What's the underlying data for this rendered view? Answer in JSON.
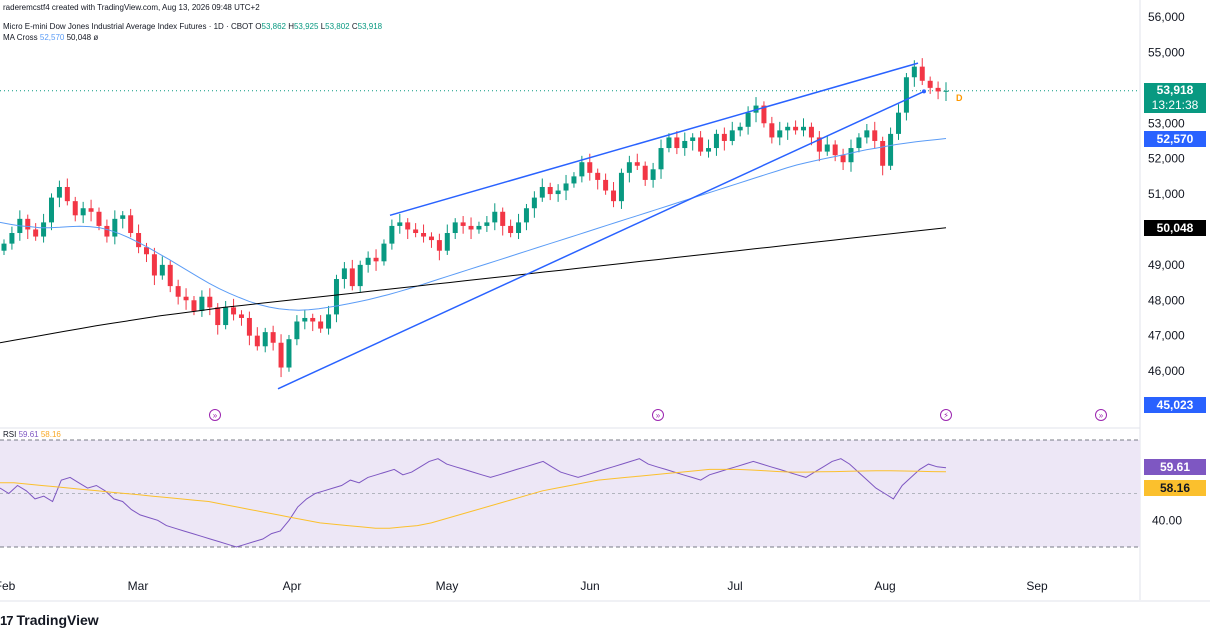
{
  "header": {
    "created_by": "raderemcstf4 created with TradingView.com, Aug 13, 2026 09:48 UTC+2",
    "symbol_line": "Micro E-mini Dow Jones Industrial Average Index Futures · 1D · CBOT",
    "ohlc": {
      "o_label": "O",
      "o": "53,862",
      "h_label": "H",
      "h": "53,925",
      "l_label": "L",
      "l": "53,802",
      "c_label": "C",
      "c": "53,918"
    },
    "ma_legend": {
      "name": "MA Cross",
      "fast": "52,570",
      "slow": "50,048",
      "symbol": "ø"
    },
    "rsi_legend": {
      "name": "RSI",
      "rsi": "59.61",
      "ma": "58.16"
    }
  },
  "footer": {
    "logo_text": "TradingView"
  },
  "colors": {
    "up": "#089981",
    "down": "#f23645",
    "ma_fast": "#5b9cf6",
    "ma_slow": "#000000",
    "trendline": "#2962ff",
    "rsi": "#7e57c2",
    "rsi_ma": "#fbc02d",
    "rsi_band": "#ede7f6"
  },
  "price_axis": {
    "ticks": [
      "56,000",
      "55,000",
      "53,000",
      "52,000",
      "51,000",
      "50,000",
      "49,000",
      "48,000",
      "47,000",
      "46,000"
    ]
  },
  "rsi_axis": {
    "ticks": [
      "40.00"
    ]
  },
  "price_tags": {
    "last": "53,918",
    "countdown": "13:21:38",
    "ma_fast": "52,570",
    "ma_slow": "50,048",
    "low_mark": "45,023",
    "rsi": "59.61",
    "rsi_ma": "58.16"
  },
  "dividend_marker": "D",
  "chart_data": {
    "type": "candlestick",
    "title": "Micro E-mini Dow Jones Industrial Average Index Futures · 1D · CBOT",
    "x_labels": [
      "Feb",
      "Mar",
      "Apr",
      "May",
      "Jun",
      "Jul",
      "Aug",
      "Sep"
    ],
    "ylim": [
      44900,
      56200
    ],
    "closes": [
      49600,
      49900,
      50300,
      50000,
      49800,
      50200,
      50900,
      51200,
      50800,
      50400,
      50600,
      50500,
      50100,
      49800,
      50300,
      50400,
      49900,
      49500,
      49300,
      48700,
      49000,
      48400,
      48100,
      48000,
      47700,
      48100,
      47800,
      47300,
      47800,
      47600,
      47500,
      47000,
      46700,
      47100,
      46800,
      46100,
      46900,
      47400,
      47500,
      47400,
      47200,
      47600,
      48600,
      48900,
      48400,
      49000,
      49200,
      49100,
      49600,
      50100,
      50200,
      50000,
      49900,
      49800,
      49700,
      49400,
      49900,
      50200,
      50100,
      50000,
      50100,
      50200,
      50500,
      50100,
      49900,
      50200,
      50600,
      50900,
      51200,
      51000,
      51100,
      51300,
      51500,
      51900,
      51600,
      51400,
      51100,
      50800,
      51600,
      51900,
      51800,
      51400,
      51700,
      52300,
      52600,
      52300,
      52500,
      52600,
      52200,
      52300,
      52700,
      52500,
      52800,
      52900,
      53300,
      53500,
      53000,
      52600,
      52800,
      52900,
      52800,
      52900,
      52600,
      52200,
      52400,
      52100,
      51900,
      52300,
      52600,
      52800,
      52500,
      51800,
      52700,
      53300,
      54300,
      54600,
      54200,
      54000,
      53900,
      53918
    ],
    "ma_fast": [
      50200,
      50150,
      50100,
      50080,
      50050,
      50050,
      50060,
      50080,
      50090,
      50080,
      50050,
      49980,
      49880,
      49760,
      49620,
      49470,
      49310,
      49150,
      48980,
      48810,
      48640,
      48480,
      48330,
      48200,
      48080,
      47970,
      47880,
      47810,
      47760,
      47730,
      47720,
      47730,
      47760,
      47800,
      47850,
      47900,
      47960,
      48020,
      48090,
      48160,
      48240,
      48320,
      48410,
      48500,
      48590,
      48680,
      48770,
      48860,
      48950,
      49040,
      49130,
      49220,
      49310,
      49400,
      49490,
      49580,
      49670,
      49760,
      49850,
      49940,
      50030,
      50120,
      50210,
      50300,
      50390,
      50480,
      50570,
      50660,
      50750,
      50840,
      50930,
      51020,
      51110,
      51200,
      51290,
      51380,
      51470,
      51560,
      51650,
      51740,
      51820,
      51890,
      51950,
      52010,
      52070,
      52130,
      52190,
      52250,
      52300,
      52350,
      52400,
      52440,
      52480,
      52510,
      52540,
      52570
    ],
    "ma_slow": [
      46800,
      46880,
      46960,
      47040,
      47120,
      47200,
      47280,
      47350,
      47420,
      47490,
      47560,
      47620,
      47680,
      47740,
      47800,
      47850,
      47900,
      47950,
      48000,
      48050,
      48100,
      48150,
      48200,
      48250,
      48300,
      48350,
      48400,
      48450,
      48500,
      48550,
      48600,
      48650,
      48700,
      48750,
      48800,
      48850,
      48900,
      48950,
      49000,
      49050,
      49100,
      49150,
      49200,
      49250,
      49300,
      49350,
      49400,
      49450,
      49500,
      49550,
      49600,
      49650,
      49700,
      49750,
      49800,
      49850,
      49900,
      49950,
      50000,
      50048
    ],
    "trendlines": [
      {
        "from": [
          "Apr 2026",
          45500
        ],
        "to": [
          "Aug 2026",
          53900
        ]
      },
      {
        "from": [
          "Apr 21 2026",
          50400
        ],
        "to": [
          "Aug 6 2026",
          54700
        ]
      }
    ],
    "rsi": [
      52,
      50,
      53,
      51,
      48,
      49,
      47,
      55,
      56,
      54,
      52,
      53,
      51,
      48,
      47,
      44,
      42,
      41,
      40,
      38,
      37,
      36,
      35,
      34,
      33,
      32,
      31,
      30,
      31,
      32,
      33,
      35,
      36,
      40,
      45,
      48,
      50,
      51,
      52,
      53,
      55,
      54,
      56,
      57,
      58,
      59,
      57,
      58,
      60,
      62,
      63,
      61,
      60,
      59,
      58,
      57,
      56,
      57,
      58,
      59,
      60,
      61,
      62,
      60,
      58,
      57,
      56,
      57,
      58,
      59,
      60,
      61,
      62,
      63,
      61,
      60,
      59,
      58,
      57,
      56,
      55,
      57,
      58,
      59,
      60,
      61,
      62,
      61,
      60,
      59,
      58,
      57,
      56,
      58,
      60,
      62,
      63,
      61,
      58,
      55,
      52,
      50,
      48,
      53,
      56,
      59,
      61,
      60,
      59.61
    ],
    "rsi_ma": [
      54,
      54,
      53.5,
      53,
      52.5,
      52,
      51.5,
      51,
      50.5,
      50,
      49.5,
      49,
      48.5,
      48,
      47.5,
      47,
      46,
      45,
      44,
      43,
      42,
      41,
      40,
      39,
      38.5,
      38,
      37.5,
      37,
      37,
      37.5,
      38,
      39,
      40.5,
      42,
      43.5,
      45,
      46.5,
      48,
      49.5,
      51,
      52,
      53,
      54,
      55,
      55.5,
      56,
      56.5,
      57,
      57.5,
      58,
      58.5,
      59,
      59,
      59,
      58.8,
      58.5,
      58.2,
      58,
      58,
      58.1,
      58.2,
      58.3,
      58.4,
      58.5,
      58.5,
      58.4,
      58.3,
      58.2,
      58.16
    ],
    "rsi_levels": [
      70,
      30
    ],
    "rsi_tick": "40.00"
  }
}
